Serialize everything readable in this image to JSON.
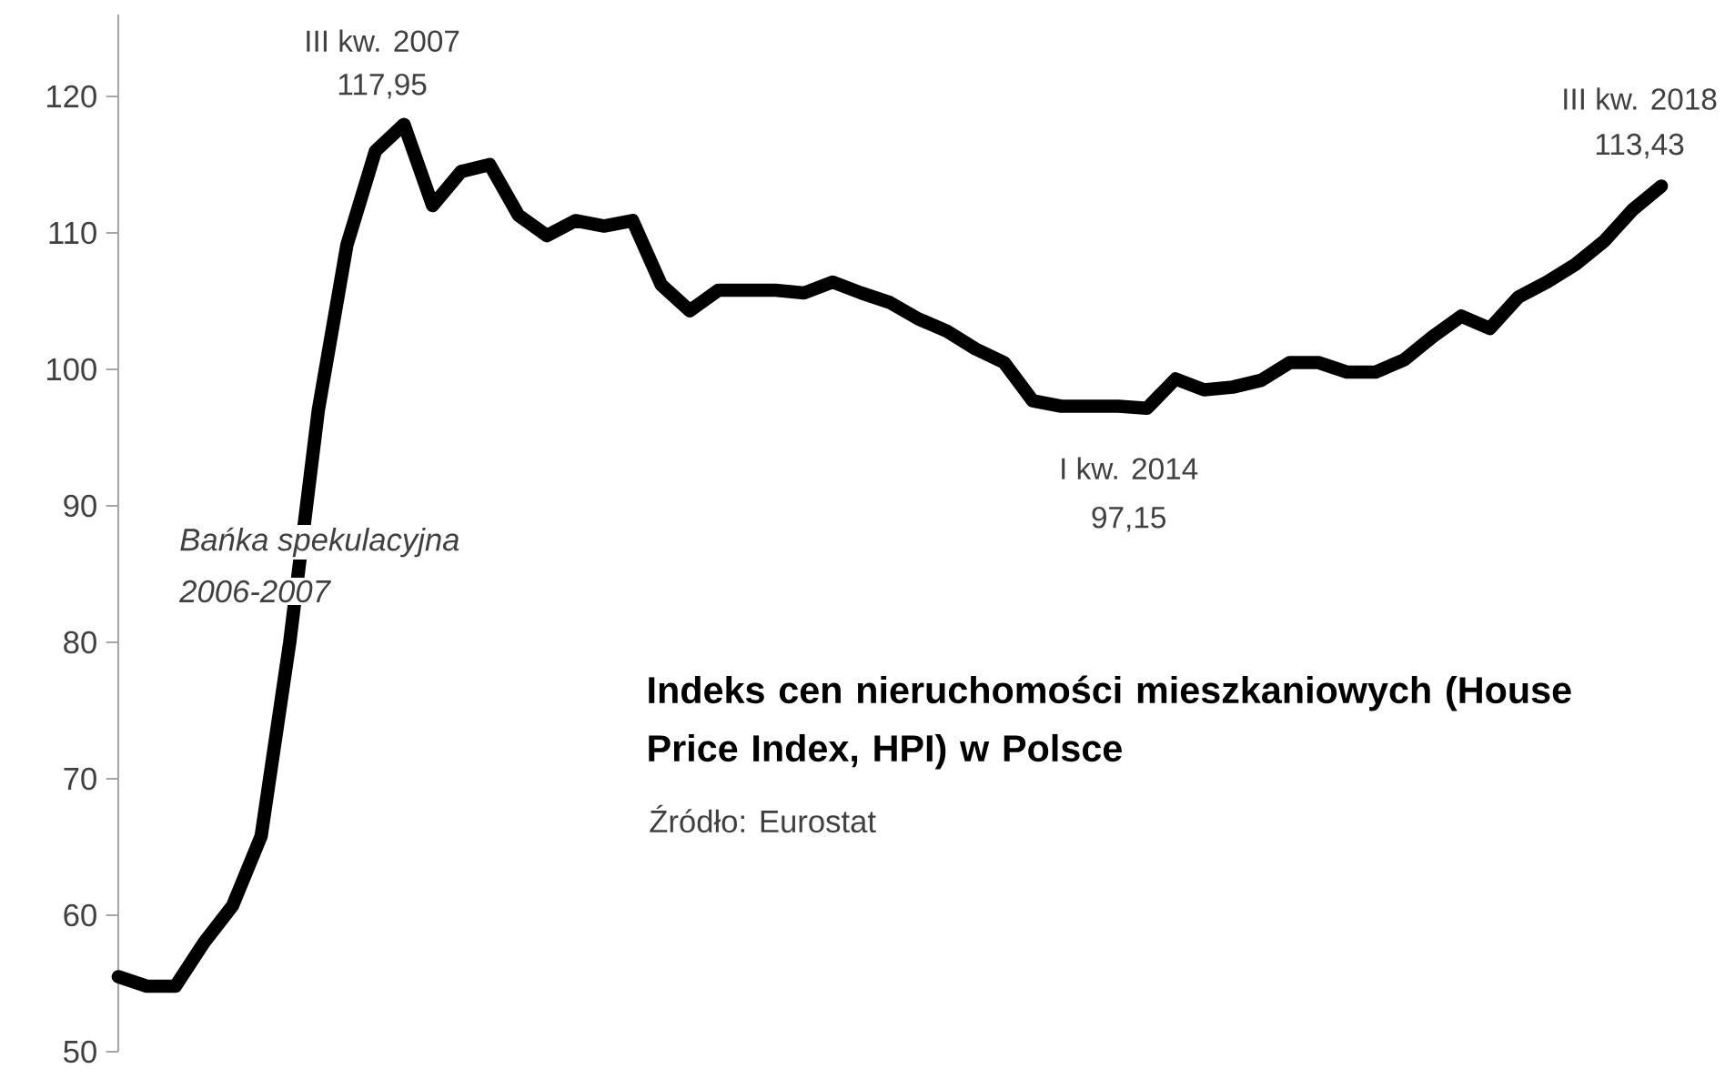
{
  "chart_data": {
    "type": "line",
    "title": "Indeks cen nieruchomości mieszkaniowych (House Price Index, HPI) w Polsce",
    "categories": [
      null,
      null,
      null,
      null,
      null,
      null,
      null,
      null,
      null,
      null,
      null,
      null,
      null,
      null,
      null,
      null,
      null,
      null,
      null,
      null,
      null,
      null,
      null,
      null,
      null,
      null,
      null,
      null,
      null,
      null,
      null,
      null,
      null,
      null,
      null,
      null,
      null,
      null,
      null,
      null,
      null,
      null,
      null,
      null,
      null,
      null,
      null,
      null,
      null,
      null,
      null,
      null,
      null,
      null,
      null
    ],
    "values": [
      55.5,
      54.8,
      54.8,
      58.0,
      60.7,
      65.8,
      80.0,
      97.0,
      109.1,
      116.0,
      117.95,
      112.0,
      114.5,
      115.0,
      111.3,
      109.8,
      110.9,
      110.5,
      110.9,
      106.2,
      104.3,
      105.8,
      105.8,
      105.8,
      105.6,
      106.4,
      105.6,
      104.9,
      103.7,
      102.8,
      101.5,
      100.5,
      97.7,
      97.3,
      97.3,
      97.3,
      97.15,
      99.3,
      98.5,
      98.7,
      99.2,
      100.5,
      100.5,
      99.8,
      99.8,
      100.7,
      102.4,
      103.9,
      103.0,
      105.3,
      106.4,
      107.7,
      109.4,
      111.7,
      113.43
    ],
    "color": "#000000",
    "ylim": [
      50,
      126
    ],
    "yticks": [
      50,
      60,
      70,
      80,
      90,
      100,
      110,
      120
    ],
    "tick_labels": "y",
    "annotations": [
      "III kw. 2007",
      "117,95",
      "I kw. 2014",
      "97,15",
      "III kw. 2018",
      "113,43",
      "*Bańka spekulacyjna*",
      "*2006-2007*",
      "Źródło: Eurostat"
    ]
  }
}
